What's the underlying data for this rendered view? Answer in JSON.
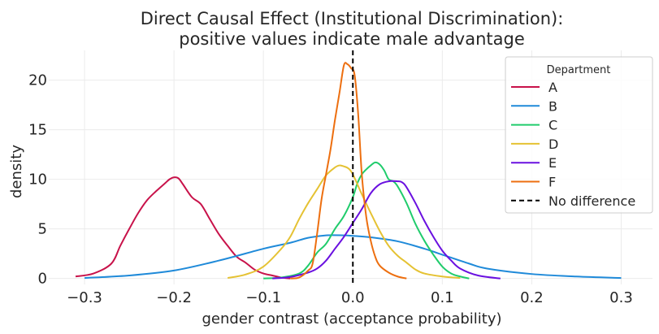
{
  "chart_data": {
    "type": "line",
    "title": [
      "Direct Causal Effect (Institutional Discrimination):",
      "positive values indicate male advantage"
    ],
    "xlabel": "gender contrast (acceptance probability)",
    "ylabel": "density",
    "xlim": [
      -0.34,
      0.335
    ],
    "ylim": [
      -0.6,
      23
    ],
    "xticks": [
      -0.3,
      -0.2,
      -0.1,
      0.0,
      0.1,
      0.2,
      0.3
    ],
    "xtick_labels": [
      "−0.3",
      "−0.2",
      "−0.1",
      "0.0",
      "0.1",
      "0.2",
      "0.3"
    ],
    "yticks": [
      0,
      5,
      10,
      15,
      20
    ],
    "ytick_labels": [
      "0",
      "5",
      "10",
      "15",
      "20"
    ],
    "grid": true,
    "legend": {
      "title": "Department",
      "position": "top-right",
      "entries": [
        {
          "label": "A",
          "color": "#c8124a",
          "style": "solid"
        },
        {
          "label": "B",
          "color": "#1f8ad9",
          "style": "solid"
        },
        {
          "label": "C",
          "color": "#20cc6c",
          "style": "solid"
        },
        {
          "label": "D",
          "color": "#e5c233",
          "style": "solid"
        },
        {
          "label": "E",
          "color": "#6a10e0",
          "style": "solid"
        },
        {
          "label": "F",
          "color": "#ed6f10",
          "style": "solid"
        },
        {
          "label": "No difference",
          "color": "#000000",
          "style": "dashed"
        }
      ]
    },
    "reference_line": {
      "x": 0.0,
      "label": "No difference"
    },
    "series": [
      {
        "name": "A",
        "color": "#c8124a",
        "x": [
          -0.31,
          -0.29,
          -0.27,
          -0.26,
          -0.25,
          -0.24,
          -0.23,
          -0.22,
          -0.21,
          -0.205,
          -0.2,
          -0.195,
          -0.19,
          -0.18,
          -0.17,
          -0.16,
          -0.15,
          -0.14,
          -0.13,
          -0.12,
          -0.11,
          -0.1,
          -0.09,
          -0.08,
          -0.07
        ],
        "y": [
          0.2,
          0.5,
          1.5,
          3.3,
          5.0,
          6.6,
          7.9,
          8.8,
          9.6,
          10.0,
          10.2,
          10.1,
          9.5,
          8.2,
          7.5,
          6.0,
          4.5,
          3.3,
          2.2,
          1.6,
          0.9,
          0.5,
          0.3,
          0.1,
          0.0
        ]
      },
      {
        "name": "B",
        "color": "#1f8ad9",
        "x": [
          -0.3,
          -0.25,
          -0.2,
          -0.15,
          -0.1,
          -0.07,
          -0.05,
          -0.03,
          -0.01,
          0.0,
          0.02,
          0.05,
          0.08,
          0.1,
          0.13,
          0.15,
          0.2,
          0.25,
          0.3
        ],
        "y": [
          0.05,
          0.3,
          0.8,
          1.8,
          3.0,
          3.6,
          4.1,
          4.35,
          4.35,
          4.3,
          4.15,
          3.75,
          3.0,
          2.4,
          1.5,
          1.0,
          0.45,
          0.2,
          0.05
        ]
      },
      {
        "name": "C",
        "color": "#20cc6c",
        "x": [
          -0.1,
          -0.08,
          -0.06,
          -0.05,
          -0.04,
          -0.03,
          -0.02,
          -0.01,
          0.0,
          0.005,
          0.01,
          0.015,
          0.02,
          0.025,
          0.03,
          0.035,
          0.04,
          0.045,
          0.05,
          0.06,
          0.07,
          0.08,
          0.09,
          0.1,
          0.11,
          0.12,
          0.13
        ],
        "y": [
          0.0,
          0.1,
          0.5,
          1.3,
          2.6,
          3.5,
          5.0,
          6.3,
          8.2,
          9.6,
          10.5,
          11.0,
          11.4,
          11.7,
          11.5,
          10.9,
          10.0,
          9.8,
          9.3,
          7.6,
          5.5,
          3.8,
          2.4,
          1.2,
          0.5,
          0.2,
          0.0
        ]
      },
      {
        "name": "D",
        "color": "#e5c233",
        "x": [
          -0.14,
          -0.12,
          -0.1,
          -0.08,
          -0.07,
          -0.06,
          -0.05,
          -0.04,
          -0.03,
          -0.02,
          -0.015,
          -0.01,
          -0.005,
          0.0,
          0.01,
          0.02,
          0.03,
          0.04,
          0.05,
          0.06,
          0.07,
          0.08,
          0.1,
          0.12
        ],
        "y": [
          0.05,
          0.4,
          1.2,
          3.0,
          4.2,
          6.0,
          7.6,
          9.0,
          10.4,
          11.2,
          11.4,
          11.3,
          11.1,
          10.5,
          8.5,
          6.6,
          4.8,
          3.3,
          2.3,
          1.6,
          0.9,
          0.5,
          0.2,
          0.05
        ]
      },
      {
        "name": "E",
        "color": "#6a10e0",
        "x": [
          -0.09,
          -0.07,
          -0.05,
          -0.04,
          -0.03,
          -0.02,
          -0.01,
          0.0,
          0.01,
          0.02,
          0.03,
          0.04,
          0.05,
          0.055,
          0.06,
          0.07,
          0.08,
          0.09,
          0.1,
          0.11,
          0.12,
          0.14,
          0.165
        ],
        "y": [
          0.0,
          0.15,
          0.6,
          1.0,
          1.8,
          3.0,
          4.2,
          5.6,
          7.0,
          8.6,
          9.5,
          9.8,
          9.8,
          9.7,
          9.2,
          7.6,
          5.8,
          4.2,
          2.8,
          1.8,
          1.0,
          0.3,
          0.0
        ]
      },
      {
        "name": "F",
        "color": "#ed6f10",
        "x": [
          -0.07,
          -0.06,
          -0.05,
          -0.045,
          -0.04,
          -0.035,
          -0.03,
          -0.025,
          -0.02,
          -0.015,
          -0.01,
          -0.006,
          -0.002,
          0.002,
          0.006,
          0.01,
          0.015,
          0.02,
          0.025,
          0.03,
          0.04,
          0.05,
          0.06
        ],
        "y": [
          0.0,
          0.1,
          0.8,
          1.5,
          4.5,
          8.0,
          10.5,
          13.0,
          16.0,
          18.7,
          21.5,
          21.6,
          21.2,
          20.5,
          16.5,
          10.5,
          6.2,
          3.8,
          2.2,
          1.3,
          0.6,
          0.2,
          0.0
        ]
      }
    ]
  }
}
